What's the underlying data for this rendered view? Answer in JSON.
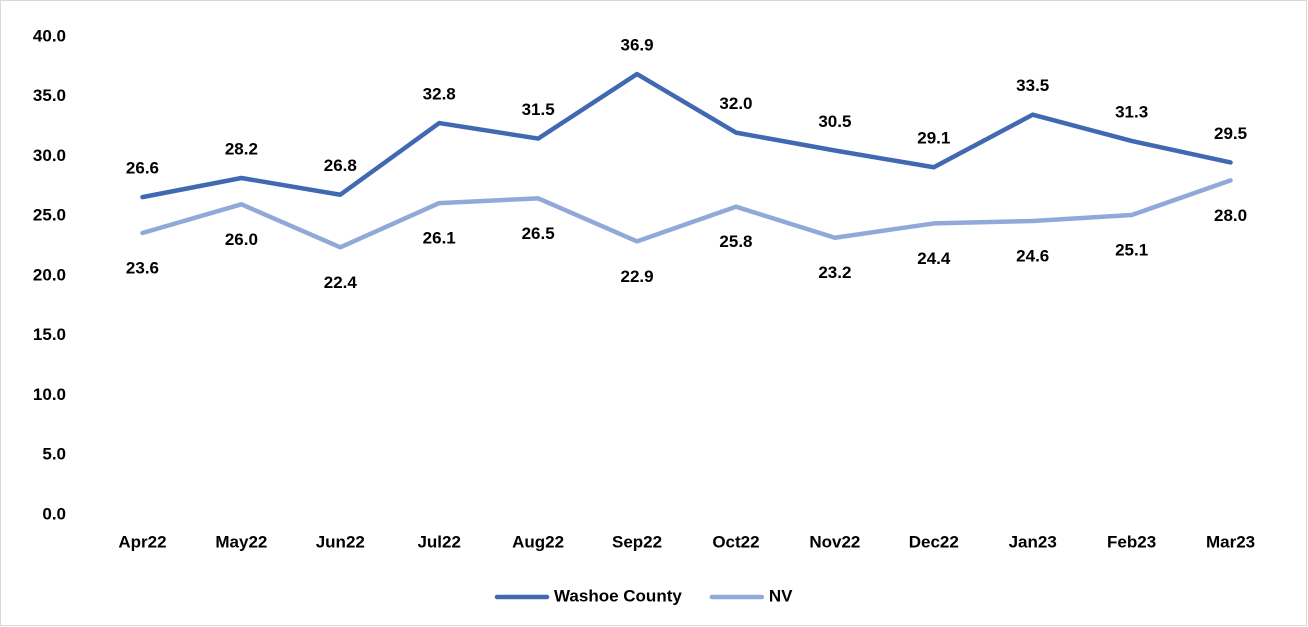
{
  "chart_data": {
    "type": "line",
    "categories": [
      "Apr22",
      "May22",
      "Jun22",
      "Jul22",
      "Aug22",
      "Sep22",
      "Oct22",
      "Nov22",
      "Dec22",
      "Jan23",
      "Feb23",
      "Mar23"
    ],
    "series": [
      {
        "name": "Washoe County",
        "color": "#4169b1",
        "values": [
          26.6,
          28.2,
          26.8,
          32.8,
          31.5,
          36.9,
          32.0,
          30.5,
          29.1,
          33.5,
          31.3,
          29.5
        ],
        "value_labels": [
          "26.6",
          "28.2",
          "26.8",
          "32.8",
          "31.5",
          "36.9",
          "32.0",
          "30.5",
          "29.1",
          "33.5",
          "31.3",
          "29.5"
        ]
      },
      {
        "name": "NV",
        "color": "#91a9d9",
        "values": [
          23.6,
          26.0,
          22.4,
          26.1,
          26.5,
          22.9,
          25.8,
          23.2,
          24.4,
          24.6,
          25.1,
          28.0
        ],
        "value_labels": [
          "23.6",
          "26.0",
          "22.4",
          "26.1",
          "26.5",
          "22.9",
          "25.8",
          "23.2",
          "24.4",
          "24.6",
          "25.1",
          "28.0"
        ]
      }
    ],
    "ylim": [
      0,
      40
    ],
    "yticks": [
      {
        "value": 0,
        "label": "0.0"
      },
      {
        "value": 5,
        "label": "5.0"
      },
      {
        "value": 10,
        "label": "10.0"
      },
      {
        "value": 15,
        "label": "15.0"
      },
      {
        "value": 20,
        "label": "20.0"
      },
      {
        "value": 25,
        "label": "25.0"
      },
      {
        "value": 30,
        "label": "30.0"
      },
      {
        "value": 35,
        "label": "35.0"
      },
      {
        "value": 40,
        "label": "40.0"
      }
    ],
    "grid": false,
    "legend": "bottom"
  }
}
